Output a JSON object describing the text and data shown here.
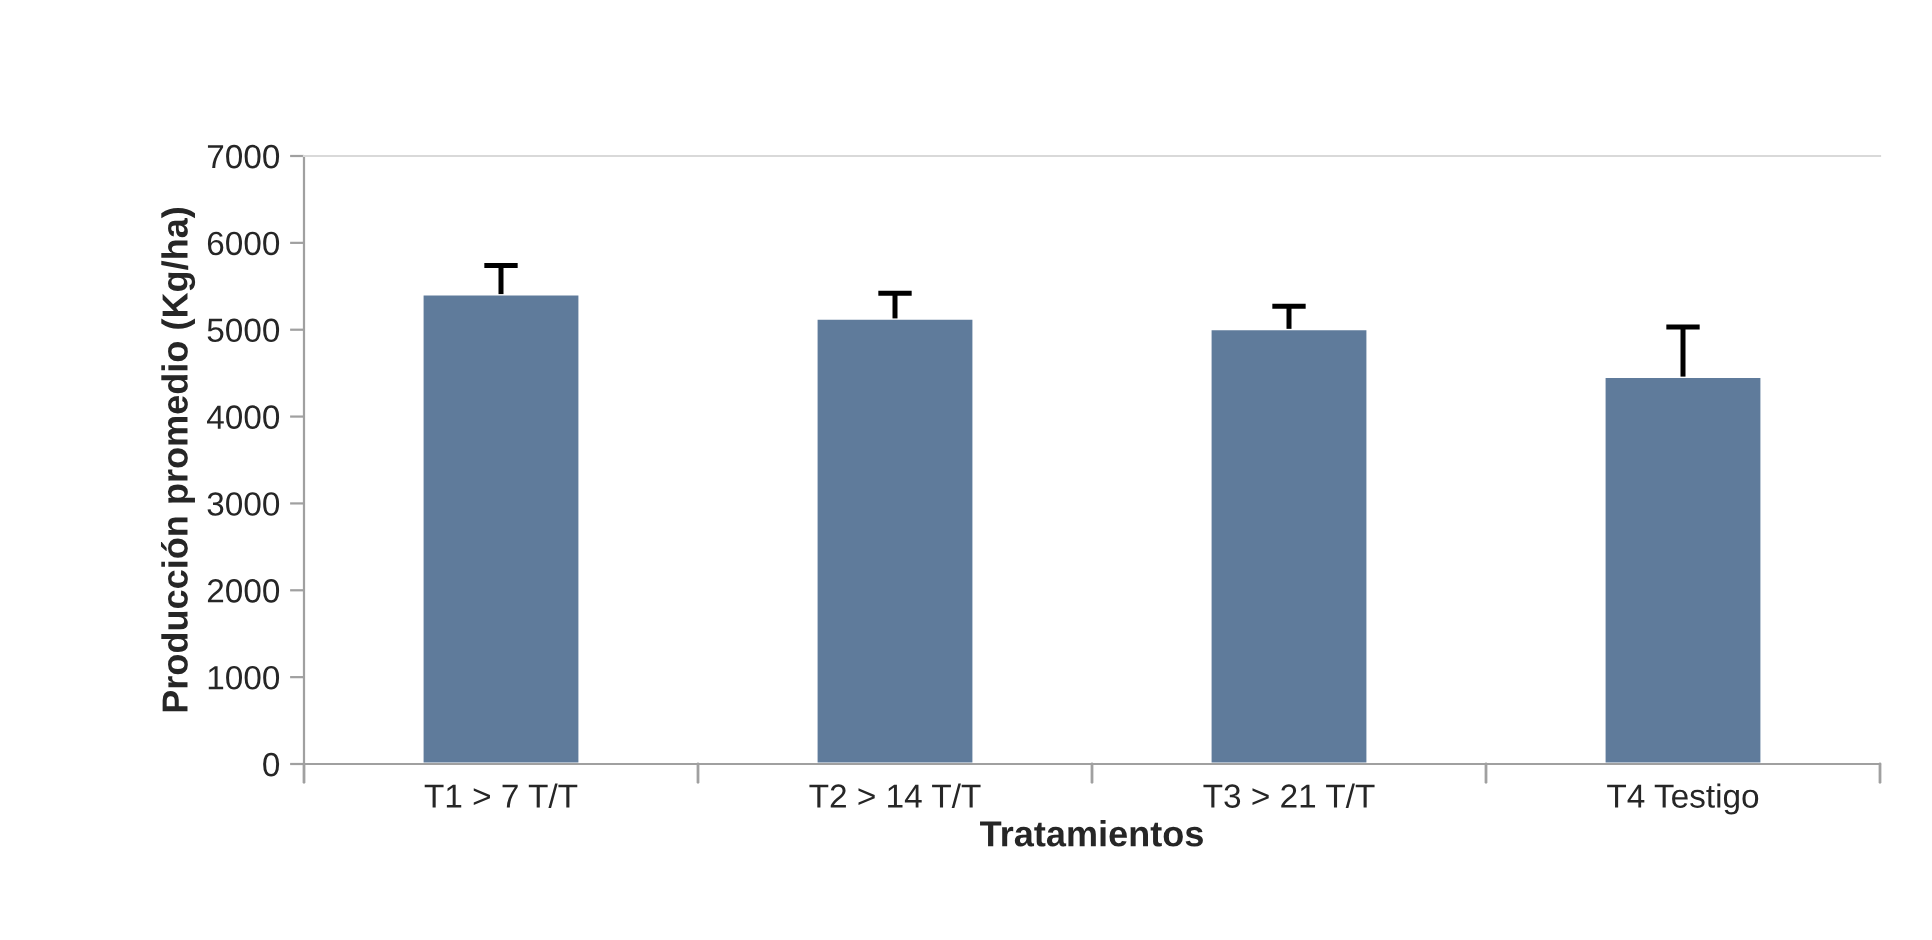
{
  "chart_data": {
    "type": "bar",
    "xlabel": "Tratamientos",
    "ylabel": "Producción promedio (Kg/ha)",
    "categories": [
      "T1 > 7 T/T",
      "T2 > 14 T/T",
      "T3 > 21 T/T",
      "T4 Testigo"
    ],
    "values": [
      5410,
      5130,
      5010,
      4460
    ],
    "color": "#5f7b9b",
    "errors": [
      [
        5410,
        5740
      ],
      [
        5130,
        5420
      ],
      [
        5010,
        5270
      ],
      [
        4460,
        5030
      ]
    ],
    "ylim": [
      0,
      7000
    ],
    "yticks": [
      0,
      1000,
      2000,
      3000,
      4000,
      5000,
      6000,
      7000
    ],
    "grid": false
  }
}
